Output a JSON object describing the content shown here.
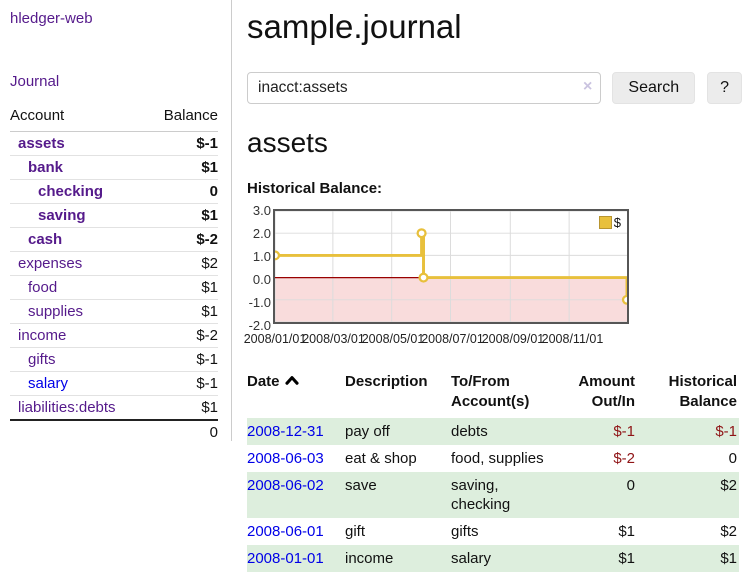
{
  "sidebar": {
    "brand": "hledger-web",
    "nav": {
      "journal": "Journal"
    },
    "accounts_table": {
      "headers": {
        "account": "Account",
        "balance": "Balance"
      },
      "rows": [
        {
          "name": "assets",
          "indent": 1,
          "bold": true,
          "balance": "$-1",
          "balance_style": "negative-strong"
        },
        {
          "name": "bank",
          "indent": 2,
          "bold": true,
          "balance": "$1",
          "balance_style": "normal"
        },
        {
          "name": "checking",
          "indent": 3,
          "bold": true,
          "balance": "0",
          "balance_style": "normal"
        },
        {
          "name": "saving",
          "indent": 3,
          "bold": true,
          "balance": "$1",
          "balance_style": "normal"
        },
        {
          "name": "cash",
          "indent": 2,
          "bold": true,
          "balance": "$-2",
          "balance_style": "negative-strong"
        },
        {
          "name": "expenses",
          "indent": 1,
          "bold": false,
          "balance": "$2",
          "balance_style": "normal"
        },
        {
          "name": "food",
          "indent": 2,
          "bold": false,
          "balance": "$1",
          "balance_style": "normal"
        },
        {
          "name": "supplies",
          "indent": 2,
          "bold": false,
          "balance": "$1",
          "balance_style": "normal"
        },
        {
          "name": "income",
          "indent": 1,
          "bold": false,
          "balance": "$-2",
          "balance_style": "negative-soft"
        },
        {
          "name": "gifts",
          "indent": 2,
          "bold": false,
          "balance": "$-1",
          "balance_style": "negative-soft"
        },
        {
          "name": "salary",
          "indent": 2,
          "bold": false,
          "balance": "$-1",
          "balance_style": "negative-soft",
          "link_style": "unvisited"
        },
        {
          "name": "liabilities:debts",
          "indent": 1,
          "bold": false,
          "balance": "$1",
          "balance_style": "normal"
        }
      ],
      "total": "0"
    }
  },
  "header": {
    "title": "sample.journal"
  },
  "search": {
    "value": "inacct:assets",
    "clear_icon": "×",
    "button": "Search",
    "help_button": "?"
  },
  "account_view": {
    "title": "assets",
    "chart_label": "Historical Balance:"
  },
  "chart_data": {
    "type": "line",
    "title": "Historical Balance:",
    "step": true,
    "series": [
      {
        "name": "$",
        "color": "#e8c03c",
        "points": [
          [
            "2008-01-01",
            1
          ],
          [
            "2008-06-01",
            2
          ],
          [
            "2008-06-02",
            2
          ],
          [
            "2008-06-03",
            0
          ],
          [
            "2008-12-31",
            -1
          ]
        ],
        "markers": [
          [
            "2008-01-01",
            1
          ],
          [
            "2008-06-01",
            2
          ],
          [
            "2008-06-03",
            0
          ],
          [
            "2008-12-31",
            -1
          ]
        ]
      }
    ],
    "x_range": [
      "2008-01-01",
      "2008-12-31"
    ],
    "x_ticks": [
      "2008/01/01",
      "2008/03/01",
      "2008/05/01",
      "2008/07/01",
      "2008/09/01",
      "2008/11/01"
    ],
    "y_ticks": [
      "3.0",
      "2.0",
      "1.0",
      "0.0",
      "-1.0",
      "-2.0"
    ],
    "ylim": [
      -2,
      3
    ],
    "grid": true,
    "legend": {
      "label": "$",
      "position": "top-right"
    },
    "negative_region_fill": "#f9dcdc",
    "zero_line_color": "#990000",
    "gridline_color": "#dcdcdc"
  },
  "register_table": {
    "headers": {
      "date": "Date",
      "description": "Description",
      "accounts": "To/From Account(s)",
      "amount": "Amount Out/In",
      "balance": "Historical Balance"
    },
    "sort": {
      "column": "date",
      "direction": "ascending"
    },
    "rows": [
      {
        "date": "2008-12-31",
        "description": "pay off",
        "accounts": "debts",
        "amount": "$-1",
        "amount_negative": true,
        "balance": "$-1",
        "balance_negative": true
      },
      {
        "date": "2008-06-03",
        "description": "eat & shop",
        "accounts": "food, supplies",
        "amount": "$-2",
        "amount_negative": true,
        "balance": "0",
        "balance_negative": false
      },
      {
        "date": "2008-06-02",
        "description": "save",
        "accounts": "saving, checking",
        "amount": "0",
        "amount_negative": false,
        "balance": "$2",
        "balance_negative": false
      },
      {
        "date": "2008-06-01",
        "description": "gift",
        "accounts": "gifts",
        "amount": "$1",
        "amount_negative": false,
        "balance": "$2",
        "balance_negative": false
      },
      {
        "date": "2008-01-01",
        "description": "income",
        "accounts": "salary",
        "amount": "$1",
        "amount_negative": false,
        "balance": "$1",
        "balance_negative": false
      }
    ]
  },
  "colors": {
    "link_visited_purple": "#551a8b",
    "link_blue": "#0000e8",
    "negative_strong_red": "#8f1416",
    "negative_soft_red": "#b56a6a",
    "row_green": "#ddeedd",
    "series_yellow": "#e8c03c",
    "negative_region_pink": "#f9dcdc",
    "zero_line_red": "#990000"
  }
}
